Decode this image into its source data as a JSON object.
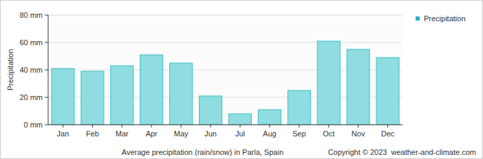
{
  "chart_data": {
    "type": "bar",
    "title": "Average precipitation (rain/snow) in Parla, Spain",
    "annotations": [
      "Copyright © 2023  weather-and-climate.com"
    ],
    "y_label": "Precipitation",
    "categories": [
      "Jan",
      "Feb",
      "Mar",
      "Apr",
      "May",
      "Jun",
      "Jul",
      "Aug",
      "Sep",
      "Oct",
      "Nov",
      "Dec"
    ],
    "series": [
      {
        "name": "Precipitation",
        "color": "#8fdde0",
        "values": [
          41,
          39,
          43,
          51,
          45,
          21,
          8,
          11,
          25,
          61,
          55,
          49
        ]
      }
    ],
    "ylim": [
      0,
      80
    ],
    "yticks": [
      {
        "value": 0,
        "label": "0 mm"
      },
      {
        "value": 20,
        "label": "20 mm"
      },
      {
        "value": 40,
        "label": "40 mm"
      },
      {
        "value": 60,
        "label": "60 mm"
      },
      {
        "value": 80,
        "label": "80 mm"
      }
    ],
    "grid": true,
    "legend": "right"
  }
}
